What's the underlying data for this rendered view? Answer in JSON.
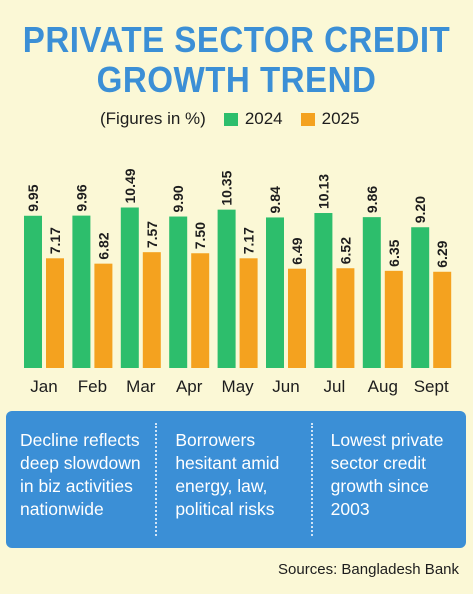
{
  "title": {
    "line1": "PRIVATE SECTOR CREDIT",
    "line2": "GROWTH TREND"
  },
  "legend": {
    "note": "(Figures in %)",
    "items": [
      {
        "label": "2024",
        "color": "#2dbe6c"
      },
      {
        "label": "2025",
        "color": "#f4a21f"
      }
    ]
  },
  "chart_data": {
    "type": "bar",
    "title": "PRIVATE SECTOR CREDIT GROWTH TREND",
    "subtitle": "(Figures in %)",
    "categories": [
      "Jan",
      "Feb",
      "Mar",
      "Apr",
      "May",
      "Jun",
      "Jul",
      "Aug",
      "Sept"
    ],
    "series": [
      {
        "name": "2024",
        "color": "#2dbe6c",
        "values": [
          9.95,
          9.96,
          10.49,
          9.9,
          10.35,
          9.84,
          10.13,
          9.86,
          9.2
        ]
      },
      {
        "name": "2025",
        "color": "#f4a21f",
        "values": [
          7.17,
          6.82,
          7.57,
          7.5,
          7.17,
          6.49,
          6.52,
          6.35,
          6.29
        ]
      }
    ],
    "value_labels": [
      [
        "9.95",
        "9.96",
        "10.49",
        "9.90",
        "10.35",
        "9.84",
        "10.13",
        "9.86",
        "9.20"
      ],
      [
        "7.17",
        "6.82",
        "7.57",
        "7.50",
        "7.17",
        "6.49",
        "6.52",
        "6.35",
        "6.29"
      ]
    ],
    "grid": false,
    "legend_position": "top"
  },
  "notes": [
    "Decline reflects deep slowdown in biz activities nationwide",
    "Borrowers hesitant amid energy, law, political risks",
    "Lowest private sector credit growth since 2003"
  ],
  "source": "Sources: Bangladesh Bank"
}
